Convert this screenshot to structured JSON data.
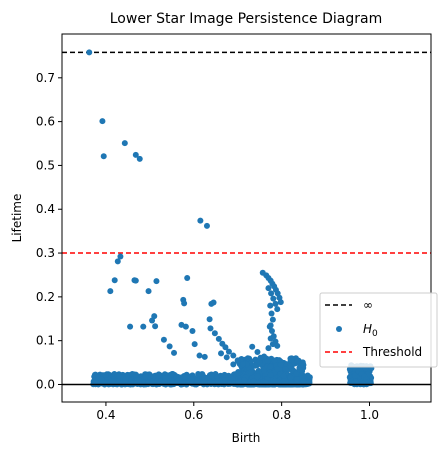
{
  "chart_data": {
    "type": "scatter",
    "title": "Lower Star Image Persistence Diagram",
    "xlabel": "Birth",
    "ylabel": "Lifetime",
    "xlim": [
      0.3,
      1.14
    ],
    "ylim": [
      -0.04,
      0.8
    ],
    "xticks": [
      0.4,
      0.6,
      0.8,
      1.0
    ],
    "xtick_labels": [
      "0.4",
      "0.6",
      "0.8",
      "1.0"
    ],
    "yticks": [
      0.0,
      0.1,
      0.2,
      0.3,
      0.4,
      0.5,
      0.6,
      0.7
    ],
    "ytick_labels": [
      "0.0",
      "0.1",
      "0.2",
      "0.3",
      "0.4",
      "0.5",
      "0.6",
      "0.7"
    ],
    "grid": false,
    "legend_position": "right",
    "infinity_line": {
      "name": "∞",
      "y": 0.758,
      "color": "#000000",
      "style": "dashed"
    },
    "threshold_line": {
      "name": "Threshold",
      "y": 0.3,
      "color": "#ff0000",
      "style": "dashed"
    },
    "zero_line": {
      "y": 0.0,
      "color": "#000000"
    },
    "series": [
      {
        "name": "H₀",
        "name_base": "H",
        "name_sub": "0",
        "color": "#1f77b4",
        "points": [
          [
            0.362,
            0.758
          ],
          [
            0.392,
            0.601
          ],
          [
            0.395,
            0.521
          ],
          [
            0.443,
            0.551
          ],
          [
            0.468,
            0.524
          ],
          [
            0.477,
            0.515
          ],
          [
            0.615,
            0.374
          ],
          [
            0.63,
            0.362
          ],
          [
            0.427,
            0.281
          ],
          [
            0.433,
            0.292
          ],
          [
            0.41,
            0.213
          ],
          [
            0.42,
            0.238
          ],
          [
            0.465,
            0.238
          ],
          [
            0.468,
            0.237
          ],
          [
            0.515,
            0.236
          ],
          [
            0.497,
            0.213
          ],
          [
            0.585,
            0.243
          ],
          [
            0.64,
            0.184
          ],
          [
            0.645,
            0.187
          ],
          [
            0.576,
            0.193
          ],
          [
            0.578,
            0.185
          ],
          [
            0.51,
            0.156
          ],
          [
            0.505,
            0.146
          ],
          [
            0.512,
            0.133
          ],
          [
            0.455,
            0.132
          ],
          [
            0.485,
            0.132
          ],
          [
            0.532,
            0.102
          ],
          [
            0.545,
            0.087
          ],
          [
            0.555,
            0.072
          ],
          [
            0.572,
            0.136
          ],
          [
            0.582,
            0.132
          ],
          [
            0.597,
            0.122
          ],
          [
            0.602,
            0.092
          ],
          [
            0.613,
            0.066
          ],
          [
            0.625,
            0.063
          ],
          [
            0.636,
            0.149
          ],
          [
            0.638,
            0.128
          ],
          [
            0.648,
            0.117
          ],
          [
            0.657,
            0.104
          ],
          [
            0.665,
            0.093
          ],
          [
            0.672,
            0.085
          ],
          [
            0.68,
            0.075
          ],
          [
            0.69,
            0.066
          ],
          [
            0.7,
            0.055
          ],
          [
            0.712,
            0.046
          ],
          [
            0.723,
            0.06
          ],
          [
            0.733,
            0.086
          ],
          [
            0.745,
            0.074
          ],
          [
            0.752,
            0.061
          ],
          [
            0.76,
            0.064
          ],
          [
            0.77,
            0.083
          ],
          [
            0.773,
            0.132
          ],
          [
            0.775,
            0.105
          ],
          [
            0.78,
            0.092
          ],
          [
            0.662,
            0.071
          ],
          [
            0.675,
            0.062
          ],
          [
            0.69,
            0.046
          ],
          [
            0.757,
            0.255
          ],
          [
            0.765,
            0.249
          ],
          [
            0.77,
            0.243
          ],
          [
            0.775,
            0.237
          ],
          [
            0.779,
            0.23
          ],
          [
            0.783,
            0.224
          ],
          [
            0.787,
            0.216
          ],
          [
            0.791,
            0.208
          ],
          [
            0.795,
            0.198
          ],
          [
            0.798,
            0.188
          ],
          [
            0.77,
            0.22
          ],
          [
            0.776,
            0.208
          ],
          [
            0.781,
            0.196
          ],
          [
            0.786,
            0.184
          ],
          [
            0.79,
            0.172
          ],
          [
            0.774,
            0.18
          ],
          [
            0.777,
            0.162
          ],
          [
            0.78,
            0.148
          ],
          [
            0.775,
            0.135
          ],
          [
            0.778,
            0.122
          ],
          [
            0.782,
            0.11
          ],
          [
            0.786,
            0.098
          ],
          [
            0.79,
            0.088
          ],
          [
            0.375,
            0.022
          ],
          [
            0.382,
            0.016
          ],
          [
            0.39,
            0.011
          ],
          [
            0.4,
            0.022
          ],
          [
            0.415,
            0.008
          ],
          [
            0.43,
            0.019
          ],
          [
            0.445,
            0.012
          ],
          [
            0.46,
            0.024
          ],
          [
            0.475,
            0.01
          ],
          [
            0.49,
            0.018
          ],
          [
            0.505,
            0.006
          ],
          [
            0.52,
            0.021
          ],
          [
            0.535,
            0.014
          ],
          [
            0.55,
            0.023
          ],
          [
            0.565,
            0.009
          ],
          [
            0.58,
            0.017
          ],
          [
            0.595,
            0.011
          ],
          [
            0.61,
            0.024
          ],
          [
            0.625,
            0.014
          ],
          [
            0.64,
            0.02
          ],
          [
            0.655,
            0.008
          ],
          [
            0.67,
            0.022
          ],
          [
            0.685,
            0.015
          ],
          [
            0.7,
            0.026
          ],
          [
            0.715,
            0.01
          ],
          [
            0.73,
            0.028
          ],
          [
            0.745,
            0.018
          ],
          [
            0.76,
            0.032
          ],
          [
            0.775,
            0.022
          ],
          [
            0.79,
            0.035
          ],
          [
            0.805,
            0.02
          ],
          [
            0.82,
            0.016
          ],
          [
            0.835,
            0.012
          ],
          [
            0.85,
            0.008
          ],
          [
            0.862,
            0.005
          ],
          [
            0.96,
            0.042
          ],
          [
            0.968,
            0.036
          ],
          [
            0.975,
            0.03
          ],
          [
            0.982,
            0.024
          ],
          [
            0.988,
            0.018
          ],
          [
            0.993,
            0.012
          ],
          [
            0.998,
            0.006
          ],
          [
            1.003,
            0.003
          ]
        ],
        "dense_band": {
          "x_start": 0.37,
          "x_end": 0.865,
          "y_max": 0.024
        },
        "dense_cluster": {
          "x_start": 0.7,
          "x_end": 0.85,
          "y_max": 0.06
        },
        "tail_band": {
          "x_start": 0.955,
          "x_end": 1.005,
          "y_max": 0.044
        }
      }
    ]
  }
}
